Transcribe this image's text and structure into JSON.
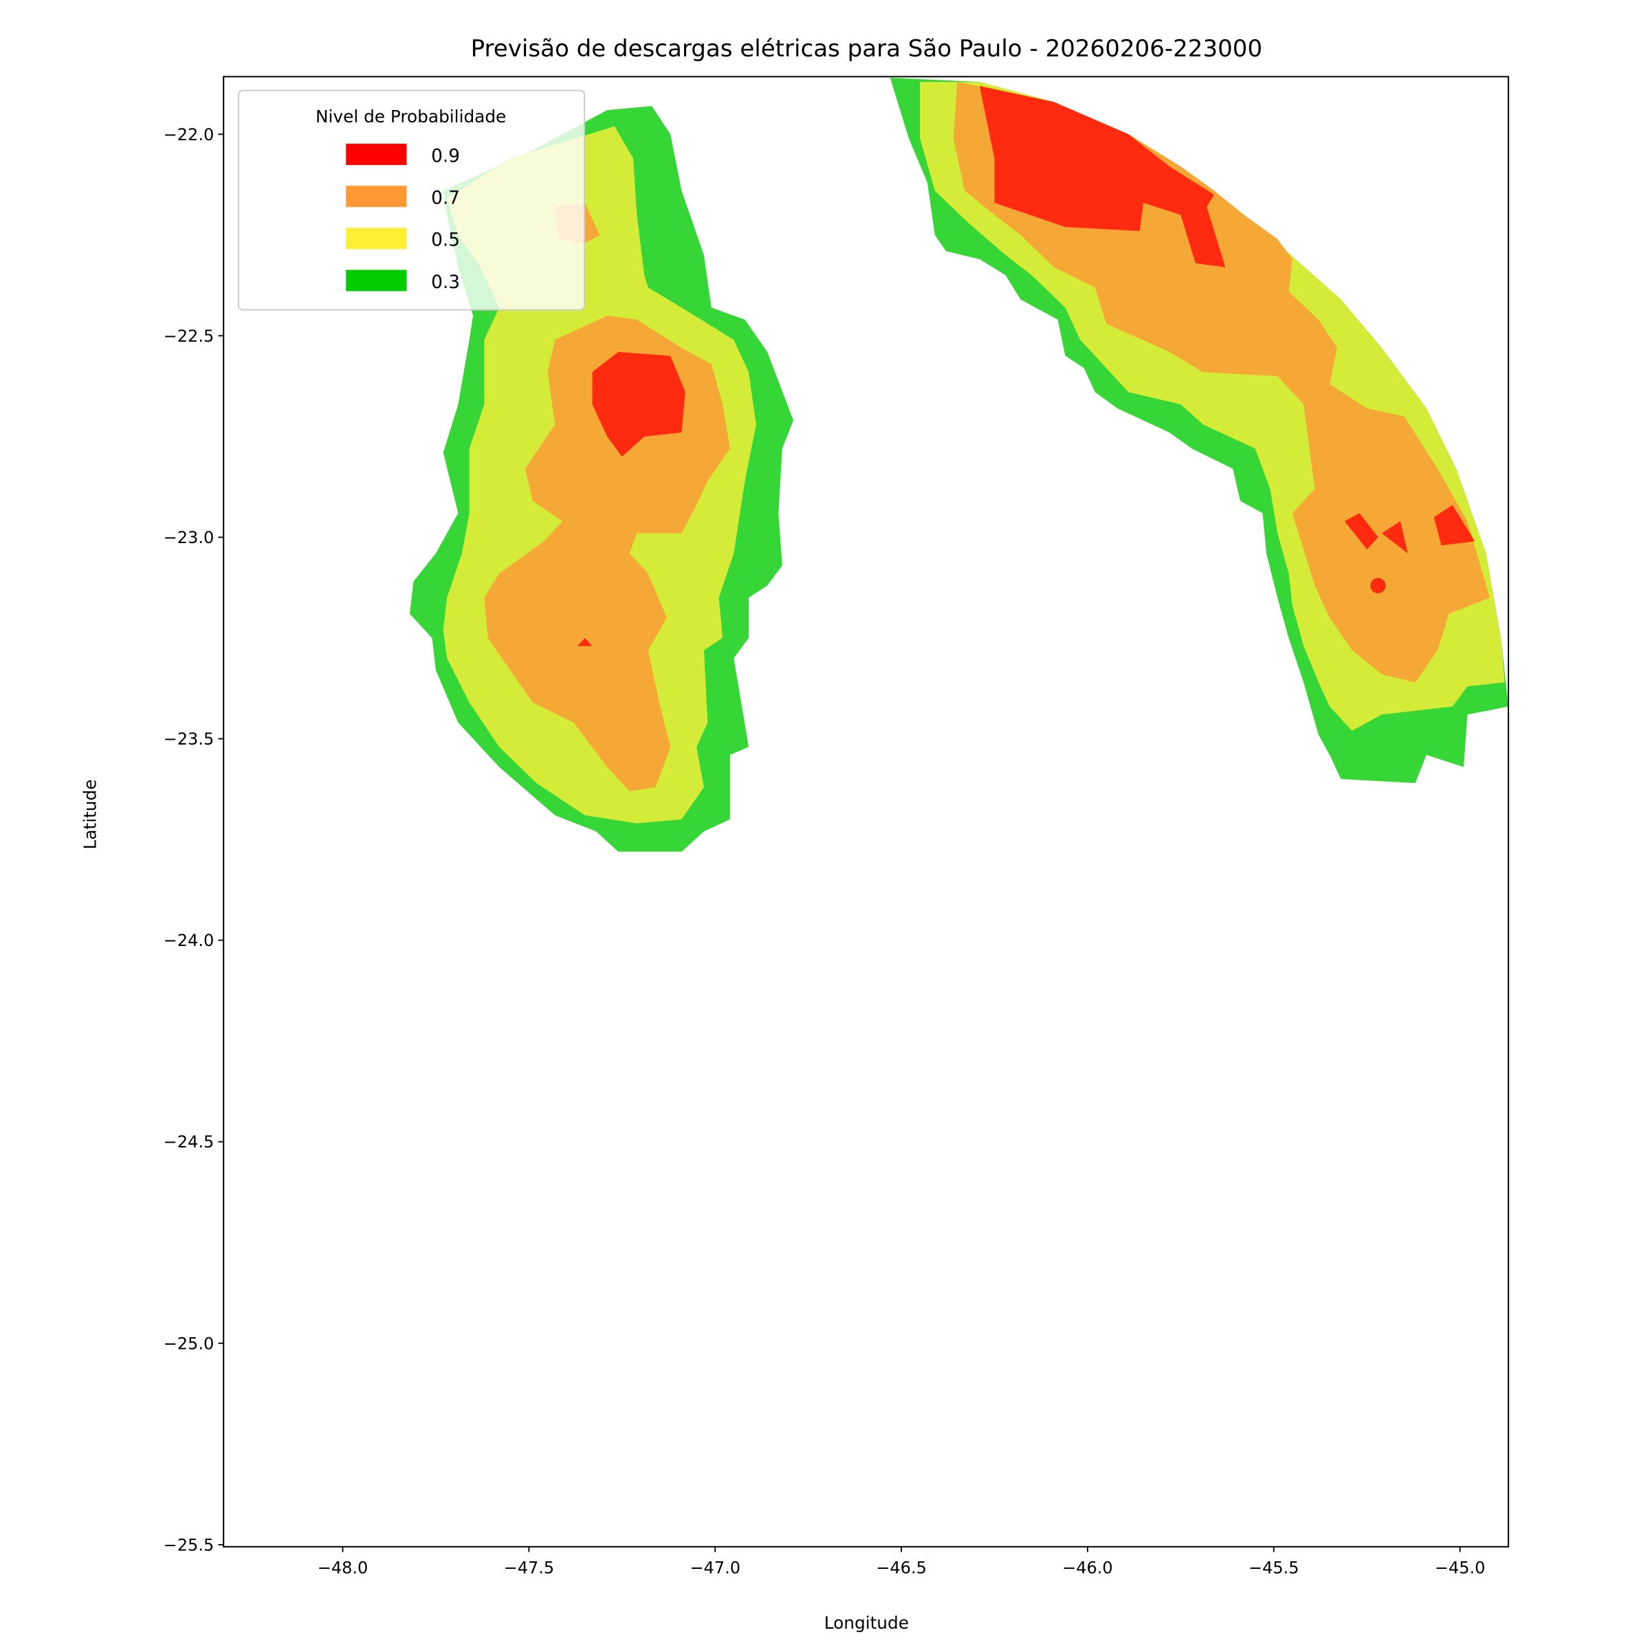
{
  "chart_data": {
    "type": "filled-contour",
    "title": "Previsão de descargas elétricas para São Paulo - 20260206-223000",
    "xlabel": "Longitude",
    "ylabel": "Latitude",
    "xlim": [
      -48.32,
      -44.87
    ],
    "ylim": [
      -25.505,
      -21.857
    ],
    "xticks": [
      -48.0,
      -47.5,
      -47.0,
      -46.5,
      -46.0,
      -45.5,
      -45.0
    ],
    "xtick_labels": [
      "−48.0",
      "−47.5",
      "−47.0",
      "−46.5",
      "−46.0",
      "−45.5",
      "−45.0"
    ],
    "yticks": [
      -22.0,
      -22.5,
      -23.0,
      -23.5,
      -24.0,
      -24.5,
      -25.0,
      -25.5
    ],
    "ytick_labels": [
      "−22.0",
      "−22.5",
      "−23.0",
      "−23.5",
      "−24.0",
      "−24.5",
      "−25.0",
      "−25.5"
    ],
    "grid": false,
    "legend": {
      "title": "Nivel de Probabilidade",
      "placement": "top-left",
      "entries": [
        {
          "label": "0.9",
          "color": "#ff0000"
        },
        {
          "label": "0.7",
          "color": "#ff9933"
        },
        {
          "label": "0.5",
          "color": "#ffee33"
        },
        {
          "label": "0.3",
          "color": "#00cc00"
        }
      ]
    },
    "level_fill_colors": {
      "0.3": "#35d635",
      "0.5": "#d4eb38",
      "0.7": "#f5a836",
      "0.9": "#ff2a10"
    },
    "regions": [
      {
        "level": "0.3",
        "polygon": [
          [
            -47.29,
            -21.94
          ],
          [
            -47.17,
            -21.93
          ],
          [
            -47.12,
            -22.0
          ],
          [
            -47.09,
            -22.14
          ],
          [
            -47.03,
            -22.3
          ],
          [
            -47.01,
            -22.43
          ],
          [
            -46.92,
            -22.46
          ],
          [
            -46.86,
            -22.54
          ],
          [
            -46.79,
            -22.71
          ],
          [
            -46.82,
            -22.78
          ],
          [
            -46.83,
            -22.94
          ],
          [
            -46.82,
            -23.07
          ],
          [
            -46.86,
            -23.12
          ],
          [
            -46.91,
            -23.15
          ],
          [
            -46.91,
            -23.25
          ],
          [
            -46.95,
            -23.3
          ],
          [
            -46.91,
            -23.52
          ],
          [
            -46.96,
            -23.54
          ],
          [
            -46.96,
            -23.7
          ],
          [
            -47.03,
            -23.73
          ],
          [
            -47.09,
            -23.78
          ],
          [
            -47.26,
            -23.78
          ],
          [
            -47.32,
            -23.73
          ],
          [
            -47.43,
            -23.69
          ],
          [
            -47.58,
            -23.57
          ],
          [
            -47.69,
            -23.46
          ],
          [
            -47.75,
            -23.33
          ],
          [
            -47.76,
            -23.25
          ],
          [
            -47.82,
            -23.19
          ],
          [
            -47.81,
            -23.11
          ],
          [
            -47.75,
            -23.04
          ],
          [
            -47.69,
            -22.94
          ],
          [
            -47.73,
            -22.79
          ],
          [
            -47.69,
            -22.67
          ],
          [
            -47.66,
            -22.51
          ],
          [
            -47.65,
            -22.45
          ],
          [
            -47.69,
            -22.33
          ],
          [
            -47.72,
            -22.2
          ],
          [
            -47.73,
            -22.14
          ],
          [
            -47.49,
            -22.04
          ]
        ]
      },
      {
        "level": "0.5",
        "polygon": [
          [
            -47.27,
            -21.98
          ],
          [
            -47.22,
            -22.06
          ],
          [
            -47.21,
            -22.2
          ],
          [
            -47.19,
            -22.35
          ],
          [
            -47.18,
            -22.38
          ],
          [
            -47.09,
            -22.43
          ],
          [
            -46.95,
            -22.51
          ],
          [
            -46.91,
            -22.59
          ],
          [
            -46.89,
            -22.72
          ],
          [
            -46.92,
            -22.86
          ],
          [
            -46.95,
            -23.04
          ],
          [
            -46.99,
            -23.15
          ],
          [
            -46.98,
            -23.25
          ],
          [
            -47.03,
            -23.28
          ],
          [
            -47.02,
            -23.46
          ],
          [
            -47.05,
            -23.52
          ],
          [
            -47.03,
            -23.62
          ],
          [
            -47.09,
            -23.7
          ],
          [
            -47.21,
            -23.71
          ],
          [
            -47.35,
            -23.69
          ],
          [
            -47.48,
            -23.61
          ],
          [
            -47.58,
            -23.52
          ],
          [
            -47.66,
            -23.41
          ],
          [
            -47.72,
            -23.3
          ],
          [
            -47.73,
            -23.23
          ],
          [
            -47.72,
            -23.15
          ],
          [
            -47.68,
            -23.04
          ],
          [
            -47.66,
            -22.94
          ],
          [
            -47.66,
            -22.78
          ],
          [
            -47.62,
            -22.67
          ],
          [
            -47.62,
            -22.51
          ],
          [
            -47.58,
            -22.43
          ],
          [
            -47.63,
            -22.33
          ],
          [
            -47.69,
            -22.25
          ],
          [
            -47.72,
            -22.16
          ],
          [
            -47.55,
            -22.06
          ]
        ]
      },
      {
        "level": "0.7",
        "polygon": [
          [
            -47.43,
            -22.51
          ],
          [
            -47.29,
            -22.45
          ],
          [
            -47.21,
            -22.46
          ],
          [
            -47.09,
            -22.53
          ],
          [
            -47.01,
            -22.57
          ],
          [
            -46.98,
            -22.67
          ],
          [
            -46.96,
            -22.78
          ],
          [
            -47.02,
            -22.86
          ],
          [
            -47.05,
            -22.92
          ],
          [
            -47.09,
            -22.99
          ],
          [
            -47.21,
            -22.99
          ],
          [
            -47.23,
            -23.04
          ],
          [
            -47.18,
            -23.09
          ],
          [
            -47.13,
            -23.2
          ],
          [
            -47.18,
            -23.28
          ],
          [
            -47.15,
            -23.41
          ],
          [
            -47.12,
            -23.52
          ],
          [
            -47.16,
            -23.62
          ],
          [
            -47.23,
            -23.63
          ],
          [
            -47.29,
            -23.57
          ],
          [
            -47.38,
            -23.46
          ],
          [
            -47.49,
            -23.41
          ],
          [
            -47.55,
            -23.33
          ],
          [
            -47.61,
            -23.25
          ],
          [
            -47.62,
            -23.15
          ],
          [
            -47.58,
            -23.09
          ],
          [
            -47.46,
            -23.01
          ],
          [
            -47.41,
            -22.96
          ],
          [
            -47.49,
            -22.91
          ],
          [
            -47.51,
            -22.83
          ],
          [
            -47.43,
            -22.72
          ],
          [
            -47.45,
            -22.59
          ]
        ]
      },
      {
        "level": "0.7",
        "polygon": [
          [
            -47.43,
            -22.18
          ],
          [
            -47.35,
            -22.17
          ],
          [
            -47.31,
            -22.25
          ],
          [
            -47.35,
            -22.27
          ],
          [
            -47.42,
            -22.26
          ]
        ]
      },
      {
        "level": "0.9",
        "polygon": [
          [
            -47.33,
            -22.59
          ],
          [
            -47.26,
            -22.54
          ],
          [
            -47.12,
            -22.55
          ],
          [
            -47.08,
            -22.64
          ],
          [
            -47.09,
            -22.74
          ],
          [
            -47.19,
            -22.75
          ],
          [
            -47.25,
            -22.8
          ],
          [
            -47.29,
            -22.75
          ],
          [
            -47.33,
            -22.67
          ]
        ]
      },
      {
        "level": "0.9",
        "polygon": [
          [
            -47.37,
            -23.27
          ],
          [
            -47.35,
            -23.25
          ],
          [
            -47.33,
            -23.27
          ]
        ]
      },
      {
        "level": "0.3",
        "polygon": [
          [
            -46.53,
            -21.86
          ],
          [
            -46.29,
            -21.87
          ],
          [
            -46.09,
            -21.92
          ],
          [
            -45.89,
            -22.0
          ],
          [
            -45.75,
            -22.08
          ],
          [
            -45.66,
            -22.14
          ],
          [
            -45.49,
            -22.27
          ],
          [
            -45.32,
            -22.41
          ],
          [
            -45.21,
            -22.53
          ],
          [
            -45.09,
            -22.68
          ],
          [
            -45.01,
            -22.83
          ],
          [
            -44.93,
            -23.04
          ],
          [
            -44.89,
            -23.25
          ],
          [
            -44.87,
            -23.42
          ],
          [
            -44.98,
            -23.44
          ],
          [
            -44.99,
            -23.57
          ],
          [
            -45.09,
            -23.54
          ],
          [
            -45.12,
            -23.61
          ],
          [
            -45.32,
            -23.6
          ],
          [
            -45.35,
            -23.54
          ],
          [
            -45.38,
            -23.49
          ],
          [
            -45.42,
            -23.36
          ],
          [
            -45.46,
            -23.25
          ],
          [
            -45.49,
            -23.15
          ],
          [
            -45.52,
            -23.04
          ],
          [
            -45.53,
            -22.94
          ],
          [
            -45.59,
            -22.91
          ],
          [
            -45.61,
            -22.83
          ],
          [
            -45.72,
            -22.78
          ],
          [
            -45.78,
            -22.74
          ],
          [
            -45.92,
            -22.68
          ],
          [
            -45.98,
            -22.64
          ],
          [
            -46.01,
            -22.58
          ],
          [
            -46.06,
            -22.55
          ],
          [
            -46.08,
            -22.46
          ],
          [
            -46.18,
            -22.41
          ],
          [
            -46.22,
            -22.35
          ],
          [
            -46.29,
            -22.31
          ],
          [
            -46.38,
            -22.29
          ],
          [
            -46.41,
            -22.25
          ],
          [
            -46.43,
            -22.12
          ],
          [
            -46.48,
            -22.01
          ]
        ]
      },
      {
        "level": "0.5",
        "polygon": [
          [
            -46.45,
            -21.87
          ],
          [
            -46.29,
            -21.87
          ],
          [
            -46.09,
            -21.92
          ],
          [
            -45.89,
            -22.0
          ],
          [
            -45.75,
            -22.08
          ],
          [
            -45.66,
            -22.14
          ],
          [
            -45.49,
            -22.27
          ],
          [
            -45.32,
            -22.41
          ],
          [
            -45.21,
            -22.53
          ],
          [
            -45.09,
            -22.68
          ],
          [
            -45.01,
            -22.83
          ],
          [
            -44.93,
            -23.04
          ],
          [
            -44.89,
            -23.25
          ],
          [
            -44.88,
            -23.36
          ],
          [
            -44.98,
            -23.37
          ],
          [
            -45.02,
            -23.42
          ],
          [
            -45.21,
            -23.44
          ],
          [
            -45.29,
            -23.48
          ],
          [
            -45.35,
            -23.42
          ],
          [
            -45.38,
            -23.36
          ],
          [
            -45.42,
            -23.27
          ],
          [
            -45.45,
            -23.17
          ],
          [
            -45.46,
            -23.09
          ],
          [
            -45.49,
            -22.99
          ],
          [
            -45.51,
            -22.88
          ],
          [
            -45.55,
            -22.78
          ],
          [
            -45.69,
            -22.72
          ],
          [
            -45.75,
            -22.67
          ],
          [
            -45.89,
            -22.64
          ],
          [
            -45.95,
            -22.58
          ],
          [
            -46.02,
            -22.51
          ],
          [
            -46.06,
            -22.43
          ],
          [
            -46.15,
            -22.35
          ],
          [
            -46.22,
            -22.3
          ],
          [
            -46.32,
            -22.22
          ],
          [
            -46.41,
            -22.14
          ],
          [
            -46.45,
            -22.01
          ]
        ]
      },
      {
        "level": "0.7",
        "polygon": [
          [
            -46.35,
            -21.87
          ],
          [
            -46.09,
            -21.92
          ],
          [
            -45.89,
            -22.0
          ],
          [
            -45.75,
            -22.08
          ],
          [
            -45.66,
            -22.14
          ],
          [
            -45.58,
            -22.2
          ],
          [
            -45.49,
            -22.26
          ],
          [
            -45.45,
            -22.31
          ],
          [
            -45.46,
            -22.39
          ],
          [
            -45.38,
            -22.46
          ],
          [
            -45.33,
            -22.53
          ],
          [
            -45.35,
            -22.62
          ],
          [
            -45.25,
            -22.68
          ],
          [
            -45.15,
            -22.7
          ],
          [
            -45.06,
            -22.83
          ],
          [
            -44.98,
            -22.96
          ],
          [
            -44.92,
            -23.15
          ],
          [
            -45.03,
            -23.19
          ],
          [
            -45.06,
            -23.28
          ],
          [
            -45.12,
            -23.36
          ],
          [
            -45.21,
            -23.34
          ],
          [
            -45.29,
            -23.28
          ],
          [
            -45.35,
            -23.2
          ],
          [
            -45.39,
            -23.12
          ],
          [
            -45.45,
            -22.94
          ],
          [
            -45.39,
            -22.88
          ],
          [
            -45.42,
            -22.67
          ],
          [
            -45.49,
            -22.6
          ],
          [
            -45.69,
            -22.59
          ],
          [
            -45.78,
            -22.54
          ],
          [
            -45.95,
            -22.47
          ],
          [
            -45.98,
            -22.38
          ],
          [
            -46.09,
            -22.33
          ],
          [
            -46.18,
            -22.25
          ],
          [
            -46.25,
            -22.2
          ],
          [
            -46.33,
            -22.14
          ],
          [
            -46.36,
            -22.01
          ]
        ]
      },
      {
        "level": "0.9",
        "polygon": [
          [
            -46.29,
            -21.88
          ],
          [
            -46.09,
            -21.92
          ],
          [
            -45.89,
            -22.0
          ],
          [
            -45.78,
            -22.08
          ],
          [
            -45.66,
            -22.15
          ],
          [
            -45.68,
            -22.18
          ],
          [
            -45.63,
            -22.33
          ],
          [
            -45.71,
            -22.32
          ],
          [
            -45.75,
            -22.2
          ],
          [
            -45.85,
            -22.17
          ],
          [
            -45.86,
            -22.24
          ],
          [
            -46.06,
            -22.23
          ],
          [
            -46.25,
            -22.17
          ],
          [
            -46.25,
            -22.06
          ]
        ]
      },
      {
        "level": "0.9",
        "polygon": [
          [
            -45.31,
            -22.96
          ],
          [
            -45.27,
            -22.94
          ],
          [
            -45.22,
            -23.0
          ],
          [
            -45.25,
            -23.03
          ]
        ]
      },
      {
        "level": "0.9",
        "polygon": [
          [
            -45.21,
            -22.99
          ],
          [
            -45.16,
            -22.96
          ],
          [
            -45.14,
            -23.04
          ]
        ]
      },
      {
        "level": "0.9",
        "polygon": [
          [
            -45.07,
            -22.95
          ],
          [
            -45.02,
            -22.92
          ],
          [
            -44.96,
            -23.01
          ],
          [
            -45.05,
            -23.02
          ]
        ]
      }
    ],
    "markers": [
      {
        "lon": -45.22,
        "lat": -23.12,
        "color": "#ff2a10"
      }
    ]
  }
}
